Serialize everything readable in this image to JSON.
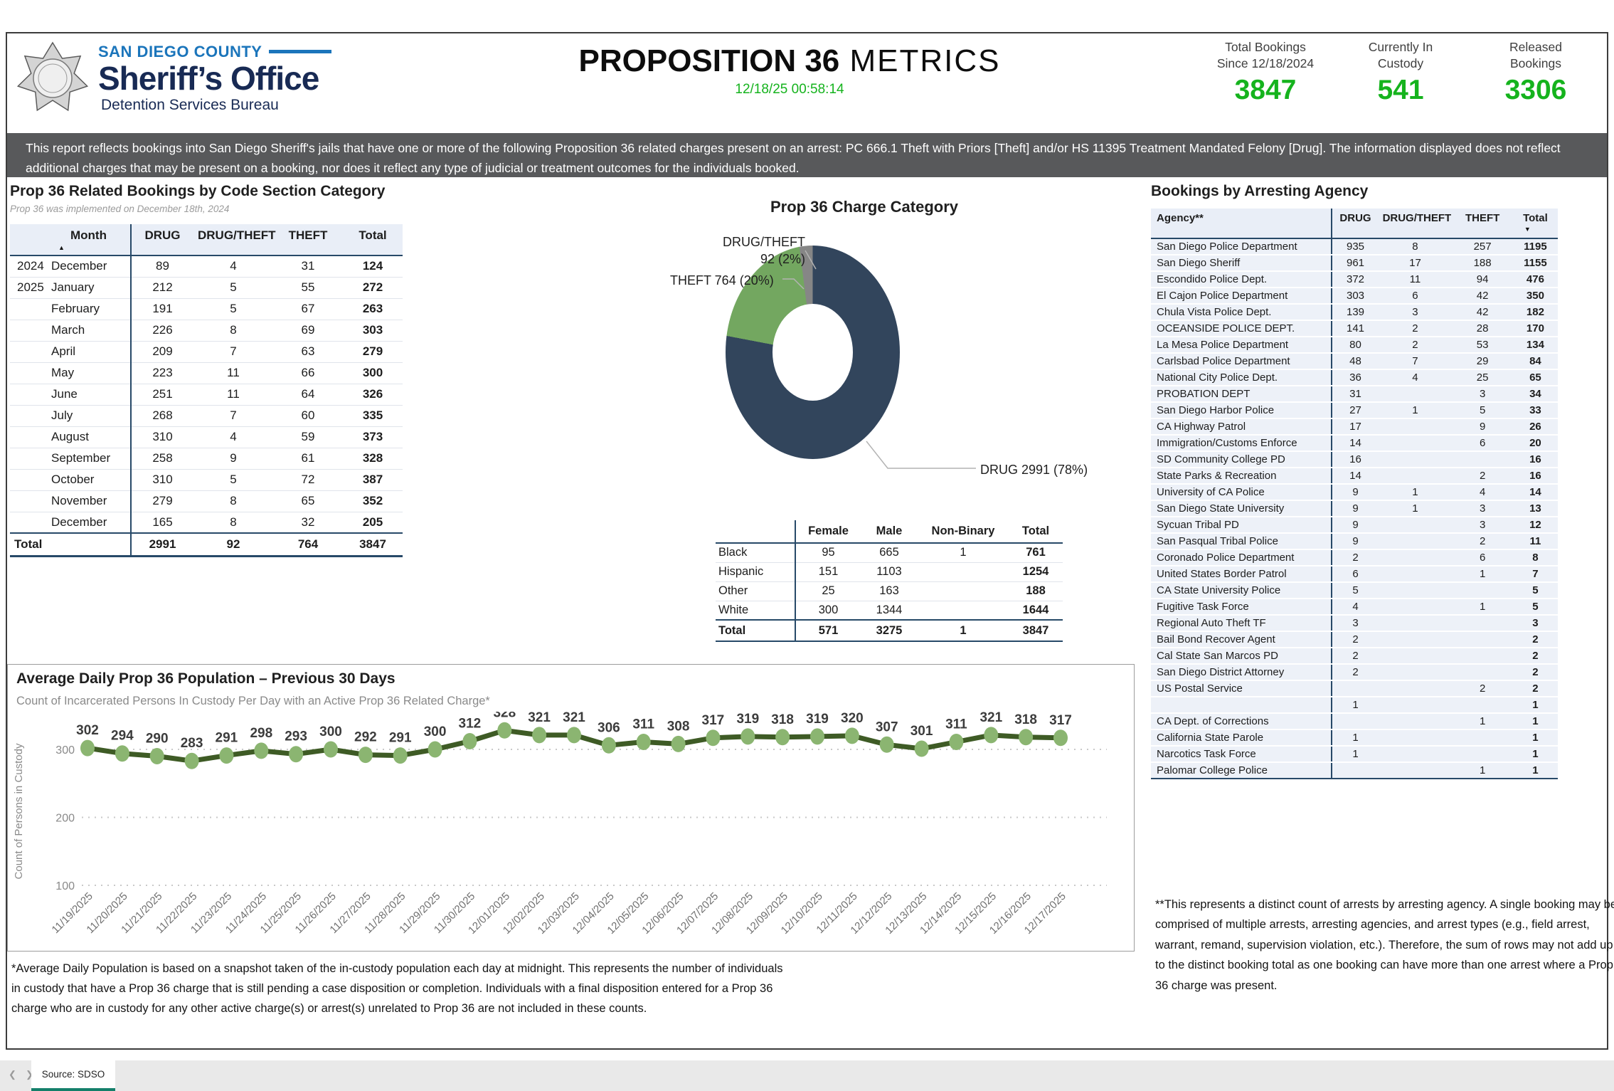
{
  "header": {
    "county": "SAN DIEGO COUNTY",
    "office": "Sheriff’s Office",
    "bureau": "Detention Services Bureau",
    "title_bold": "PROPOSITION 36",
    "title_light": " METRICS",
    "timestamp": "12/18/25 00:58:14",
    "stats": [
      {
        "line1": "Total Bookings",
        "line2": "Since 12/18/2024",
        "value": "3847"
      },
      {
        "line1": "Currently In",
        "line2": "Custody",
        "value": "541"
      },
      {
        "line1": "Released",
        "line2": "Bookings",
        "value": "3306"
      }
    ]
  },
  "banner": "This report reflects bookings into San Diego Sheriff's jails that have one or more of the following Proposition 36 related charges present on an arrest: PC 666.1 Theft with Priors [Theft] and/or HS 11395 Treatment Mandated Felony [Drug]. The information displayed does not reflect additional charges that may be present on a booking, nor does it reflect any type of judicial or treatment outcomes for the individuals booked.",
  "bookings_by_month": {
    "title": "Prop 36 Related Bookings by Code Section Category",
    "subtitle": "Prop 36 was implemented on December 18th, 2024",
    "columns": [
      "Month",
      "DRUG",
      "DRUG/THEFT",
      "THEFT",
      "Total"
    ],
    "rows": [
      [
        "2024",
        "December",
        "89",
        "4",
        "31",
        "124"
      ],
      [
        "2025",
        "January",
        "212",
        "5",
        "55",
        "272"
      ],
      [
        "",
        "February",
        "191",
        "5",
        "67",
        "263"
      ],
      [
        "",
        "March",
        "226",
        "8",
        "69",
        "303"
      ],
      [
        "",
        "April",
        "209",
        "7",
        "63",
        "279"
      ],
      [
        "",
        "May",
        "223",
        "11",
        "66",
        "300"
      ],
      [
        "",
        "June",
        "251",
        "11",
        "64",
        "326"
      ],
      [
        "",
        "July",
        "268",
        "7",
        "60",
        "335"
      ],
      [
        "",
        "August",
        "310",
        "4",
        "59",
        "373"
      ],
      [
        "",
        "September",
        "258",
        "9",
        "61",
        "328"
      ],
      [
        "",
        "October",
        "310",
        "5",
        "72",
        "387"
      ],
      [
        "",
        "November",
        "279",
        "8",
        "65",
        "352"
      ],
      [
        "",
        "December",
        "165",
        "8",
        "32",
        "205"
      ]
    ],
    "total_row": [
      "Total",
      "2991",
      "92",
      "764",
      "3847"
    ]
  },
  "charge_category": {
    "title": "Prop 36 Charge Category",
    "slices": [
      {
        "name": "DRUG",
        "value": 2991,
        "pct": 78,
        "color": "#32455c",
        "display": "DRUG 2991 (78%)"
      },
      {
        "name": "THEFT",
        "value": 764,
        "pct": 20,
        "color": "#73a760",
        "display": "THEFT 764 (20%)"
      },
      {
        "name": "DRUG/THEFT",
        "value": 92,
        "pct": 2,
        "color": "#868686",
        "display_line1": "DRUG/THEFT",
        "display_line2": "92 (2%)"
      }
    ]
  },
  "demographics": {
    "columns": [
      "Female",
      "Male",
      "Non-Binary",
      "Total"
    ],
    "rows": [
      [
        "Black",
        "95",
        "665",
        "1",
        "761"
      ],
      [
        "Hispanic",
        "151",
        "1103",
        "",
        "1254"
      ],
      [
        "Other",
        "25",
        "163",
        "",
        "188"
      ],
      [
        "White",
        "300",
        "1344",
        "",
        "1644"
      ]
    ],
    "total_row": [
      "Total",
      "571",
      "3275",
      "1",
      "3847"
    ]
  },
  "agency_table": {
    "title": "Bookings by Arresting Agency",
    "columns": [
      "Agency**",
      "DRUG",
      "DRUG/THEFT",
      "THEFT",
      "Total"
    ],
    "rows": [
      [
        "San Diego Police Department",
        "935",
        "8",
        "257",
        "1195"
      ],
      [
        "San Diego Sheriff",
        "961",
        "17",
        "188",
        "1155"
      ],
      [
        "Escondido Police Dept.",
        "372",
        "11",
        "94",
        "476"
      ],
      [
        "El Cajon Police Department",
        "303",
        "6",
        "42",
        "350"
      ],
      [
        "Chula Vista Police Dept.",
        "139",
        "3",
        "42",
        "182"
      ],
      [
        "OCEANSIDE POLICE DEPT.",
        "141",
        "2",
        "28",
        "170"
      ],
      [
        "La Mesa Police Department",
        "80",
        "2",
        "53",
        "134"
      ],
      [
        "Carlsbad Police Department",
        "48",
        "7",
        "29",
        "84"
      ],
      [
        "National City Police Dept.",
        "36",
        "4",
        "25",
        "65"
      ],
      [
        "PROBATION DEPT",
        "31",
        "",
        "3",
        "34"
      ],
      [
        "San Diego Harbor Police",
        "27",
        "1",
        "5",
        "33"
      ],
      [
        "CA Highway Patrol",
        "17",
        "",
        "9",
        "26"
      ],
      [
        "Immigration/Customs Enforce",
        "14",
        "",
        "6",
        "20"
      ],
      [
        "SD Community College PD",
        "16",
        "",
        "",
        "16"
      ],
      [
        "State Parks & Recreation",
        "14",
        "",
        "2",
        "16"
      ],
      [
        "University of CA Police",
        "9",
        "1",
        "4",
        "14"
      ],
      [
        "San Diego State University",
        "9",
        "1",
        "3",
        "13"
      ],
      [
        "Sycuan Tribal PD",
        "9",
        "",
        "3",
        "12"
      ],
      [
        "San Pasqual Tribal Police",
        "9",
        "",
        "2",
        "11"
      ],
      [
        "Coronado Police Department",
        "2",
        "",
        "6",
        "8"
      ],
      [
        "United States Border Patrol",
        "6",
        "",
        "1",
        "7"
      ],
      [
        "CA State University Police",
        "5",
        "",
        "",
        "5"
      ],
      [
        "Fugitive Task Force",
        "4",
        "",
        "1",
        "5"
      ],
      [
        "Regional Auto Theft TF",
        "3",
        "",
        "",
        "3"
      ],
      [
        "Bail Bond Recover Agent",
        "2",
        "",
        "",
        "2"
      ],
      [
        "Cal State San Marcos PD",
        "2",
        "",
        "",
        "2"
      ],
      [
        "San Diego District Attorney",
        "2",
        "",
        "",
        "2"
      ],
      [
        "US Postal Service",
        "",
        "",
        "2",
        "2"
      ],
      [
        "",
        "1",
        "",
        "",
        "1"
      ],
      [
        "CA Dept. of Corrections",
        "",
        "",
        "1",
        "1"
      ],
      [
        "California State Parole",
        "1",
        "",
        "",
        "1"
      ],
      [
        "Narcotics Task Force",
        "1",
        "",
        "",
        "1"
      ],
      [
        "Palomar College Police",
        "",
        "",
        "1",
        "1"
      ]
    ]
  },
  "population_chart": {
    "title": "Average Daily Prop 36 Population – Previous 30 Days",
    "subtitle": "Count of Incarcerated Persons In Custody Per Day with an Active Prop 36 Related Charge*",
    "ylabel": "Count of Persons in Custody",
    "yticks": [
      100,
      200,
      300
    ],
    "line_color": "#3e5b25",
    "marker_color": "#8bb571",
    "dates": [
      "11/19/2025",
      "11/20/2025",
      "11/21/2025",
      "11/22/2025",
      "11/23/2025",
      "11/24/2025",
      "11/25/2025",
      "11/26/2025",
      "11/27/2025",
      "11/28/2025",
      "11/29/2025",
      "11/30/2025",
      "12/01/2025",
      "12/02/2025",
      "12/03/2025",
      "12/04/2025",
      "12/05/2025",
      "12/06/2025",
      "12/07/2025",
      "12/08/2025",
      "12/09/2025",
      "12/10/2025",
      "12/11/2025",
      "12/12/2025",
      "12/13/2025",
      "12/14/2025",
      "12/15/2025",
      "12/16/2025",
      "12/17/2025"
    ],
    "values": [
      302,
      294,
      290,
      283,
      291,
      298,
      293,
      300,
      292,
      291,
      300,
      312,
      328,
      321,
      321,
      306,
      311,
      308,
      317,
      319,
      318,
      319,
      320,
      307,
      301,
      311,
      321,
      318,
      317
    ]
  },
  "footnotes": {
    "daily_population": "*Average Daily Population is based on a snapshot taken of the in-custody population each day at midnight. This represents the number of individuals in custody that have a Prop 36 charge that is still pending a case disposition or completion. Individuals with a final disposition entered for a Prop 36 charge who are in custody for any other active charge(s) or arrest(s) unrelated to Prop 36 are not included in these counts.",
    "agency": "**This represents a distinct count of arrests by arresting agency. A single booking may be comprised of multiple arrests, arresting agencies, and arrest types (e.g., field arrest, warrant, remand, supervision violation, etc.). Therefore, the sum of rows may not add up to the distinct booking total as one booking can have more than one arrest where a Prop 36 charge was present."
  },
  "tab_bar": {
    "source_label": "Source: SDSO"
  },
  "icons": {
    "sort_ascending": "▲",
    "sort_descending": "▼",
    "nav_left": "❮",
    "nav_right": "❯"
  },
  "colors": {
    "green": "#15b31d",
    "navy_line": "#274968",
    "banner_gray": "#58595b",
    "brand_blue": "#1b75bb",
    "brand_navy": "#182a54",
    "tab_teal": "#147f6a"
  },
  "chart_data": [
    {
      "type": "pie",
      "title": "Prop 36 Charge Category",
      "labels": [
        "DRUG",
        "THEFT",
        "DRUG/THEFT"
      ],
      "values": [
        2991,
        764,
        92
      ],
      "percents": [
        78,
        20,
        2
      ],
      "colors": [
        "#32455c",
        "#73a760",
        "#868686"
      ],
      "donut": true
    },
    {
      "type": "line",
      "title": "Average Daily Prop 36 Population – Previous 30 Days",
      "subtitle": "Count of Incarcerated Persons In Custody Per Day with an Active Prop 36 Related Charge*",
      "xlabel": "",
      "ylabel": "Count of Persons in Custody",
      "ylim": [
        100,
        340
      ],
      "grid": true,
      "x": [
        "11/19/2025",
        "11/20/2025",
        "11/21/2025",
        "11/22/2025",
        "11/23/2025",
        "11/24/2025",
        "11/25/2025",
        "11/26/2025",
        "11/27/2025",
        "11/28/2025",
        "11/29/2025",
        "11/30/2025",
        "12/01/2025",
        "12/02/2025",
        "12/03/2025",
        "12/04/2025",
        "12/05/2025",
        "12/06/2025",
        "12/07/2025",
        "12/08/2025",
        "12/09/2025",
        "12/10/2025",
        "12/11/2025",
        "12/12/2025",
        "12/13/2025",
        "12/14/2025",
        "12/15/2025",
        "12/16/2025",
        "12/17/2025"
      ],
      "values": [
        302,
        294,
        290,
        283,
        291,
        298,
        293,
        300,
        292,
        291,
        300,
        312,
        328,
        321,
        321,
        306,
        311,
        308,
        317,
        319,
        318,
        319,
        320,
        307,
        301,
        311,
        321,
        318,
        317
      ]
    }
  ]
}
